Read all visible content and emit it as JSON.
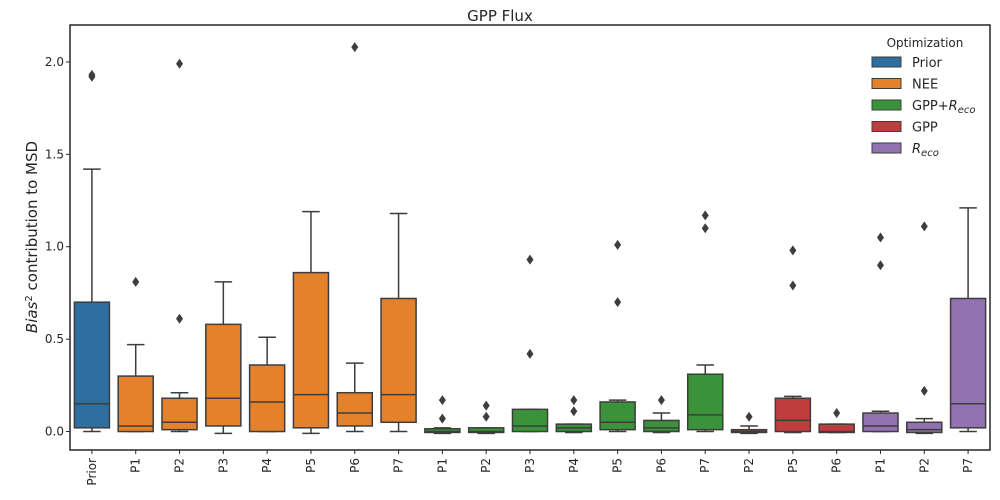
{
  "chart_data": {
    "type": "box",
    "title": "GPP Flux",
    "ylabel": "Bias² contribution to MSD",
    "ylabel_parts": {
      "main": "Bias",
      "sup": "2",
      "rest": " contribution to MSD"
    },
    "ylim": [
      -0.1,
      2.2
    ],
    "yticks": [
      0.0,
      0.5,
      1.0,
      1.5,
      2.0
    ],
    "ytick_labels": [
      "0.0",
      "0.5",
      "1.0",
      "1.5",
      "2.0"
    ],
    "grid": false,
    "legend": {
      "title": "Optimization",
      "placement": "top-right",
      "entries": [
        {
          "group": "Prior",
          "color": "#2f6f9f",
          "text": "Prior"
        },
        {
          "group": "NEE",
          "color": "#e6812b",
          "text": "NEE"
        },
        {
          "group": "GPP+Reco",
          "color": "#3a923a",
          "text": "GPP+",
          "italic": "R",
          "sub": "eco"
        },
        {
          "group": "GPP",
          "color": "#c03d3e",
          "text": "GPP"
        },
        {
          "group": "Reco",
          "color": "#9372b2",
          "italic": "R",
          "sub": "eco"
        }
      ]
    },
    "series": [
      {
        "name": "Prior",
        "group": "Prior",
        "color": "#2f6f9f",
        "boxes": [
          {
            "label": "Prior",
            "whislo": 0.0,
            "q1": 0.02,
            "med": 0.15,
            "q3": 0.7,
            "whishi": 1.42,
            "fliers": [
              1.92,
              1.93
            ]
          }
        ]
      },
      {
        "name": "NEE",
        "group": "NEE",
        "color": "#e6812b",
        "boxes": [
          {
            "label": "P1",
            "whislo": 0.0,
            "q1": 0.0,
            "med": 0.03,
            "q3": 0.3,
            "whishi": 0.47,
            "fliers": [
              0.81
            ]
          },
          {
            "label": "P2",
            "whislo": 0.0,
            "q1": 0.01,
            "med": 0.05,
            "q3": 0.18,
            "whishi": 0.21,
            "fliers": [
              0.61,
              1.99
            ]
          },
          {
            "label": "P3",
            "whislo": -0.01,
            "q1": 0.03,
            "med": 0.18,
            "q3": 0.58,
            "whishi": 0.81,
            "fliers": []
          },
          {
            "label": "P4",
            "whislo": 0.0,
            "q1": 0.0,
            "med": 0.16,
            "q3": 0.36,
            "whishi": 0.51,
            "fliers": []
          },
          {
            "label": "P5",
            "whislo": -0.01,
            "q1": 0.02,
            "med": 0.2,
            "q3": 0.86,
            "whishi": 1.19,
            "fliers": []
          },
          {
            "label": "P6",
            "whislo": 0.0,
            "q1": 0.03,
            "med": 0.1,
            "q3": 0.21,
            "whishi": 0.37,
            "fliers": [
              2.08
            ]
          },
          {
            "label": "P7",
            "whislo": 0.0,
            "q1": 0.05,
            "med": 0.2,
            "q3": 0.72,
            "whishi": 1.18,
            "fliers": []
          }
        ]
      },
      {
        "name": "GPP+Reco",
        "group": "GPP+Reco",
        "color": "#3a923a",
        "boxes": [
          {
            "label": "P1",
            "whislo": -0.01,
            "q1": -0.005,
            "med": 0.0,
            "q3": 0.015,
            "whishi": 0.02,
            "fliers": [
              0.07,
              0.17
            ]
          },
          {
            "label": "P2",
            "whislo": -0.01,
            "q1": -0.005,
            "med": 0.0,
            "q3": 0.02,
            "whishi": 0.02,
            "fliers": [
              0.08,
              0.14
            ]
          },
          {
            "label": "P3",
            "whislo": 0.0,
            "q1": 0.0,
            "med": 0.03,
            "q3": 0.12,
            "whishi": 0.12,
            "fliers": [
              0.42,
              0.93
            ]
          },
          {
            "label": "P4",
            "whislo": -0.005,
            "q1": 0.0,
            "med": 0.02,
            "q3": 0.04,
            "whishi": 0.04,
            "fliers": [
              0.11,
              0.17
            ]
          },
          {
            "label": "P5",
            "whislo": 0.0,
            "q1": 0.01,
            "med": 0.05,
            "q3": 0.16,
            "whishi": 0.17,
            "fliers": [
              0.7,
              1.01
            ]
          },
          {
            "label": "P6",
            "whislo": -0.005,
            "q1": 0.0,
            "med": 0.02,
            "q3": 0.06,
            "whishi": 0.1,
            "fliers": [
              0.17
            ]
          },
          {
            "label": "P7",
            "whislo": 0.0,
            "q1": 0.01,
            "med": 0.09,
            "q3": 0.31,
            "whishi": 0.36,
            "fliers": [
              1.1,
              1.17
            ]
          }
        ]
      },
      {
        "name": "GPP",
        "group": "GPP",
        "color": "#c03d3e",
        "boxes": [
          {
            "label": "P2",
            "whislo": -0.01,
            "q1": -0.005,
            "med": 0.0,
            "q3": 0.01,
            "whishi": 0.03,
            "fliers": [
              0.08
            ]
          },
          {
            "label": "P5",
            "whislo": -0.005,
            "q1": 0.0,
            "med": 0.06,
            "q3": 0.18,
            "whishi": 0.19,
            "fliers": [
              0.79,
              0.98
            ]
          },
          {
            "label": "P6",
            "whislo": -0.005,
            "q1": -0.005,
            "med": 0.0,
            "q3": 0.04,
            "whishi": 0.04,
            "fliers": [
              0.1
            ]
          }
        ]
      },
      {
        "name": "Reco",
        "group": "Reco",
        "color": "#9372b2",
        "boxes": [
          {
            "label": "P1",
            "whislo": 0.0,
            "q1": 0.0,
            "med": 0.03,
            "q3": 0.1,
            "whishi": 0.11,
            "fliers": [
              0.9,
              1.05
            ]
          },
          {
            "label": "P2",
            "whislo": -0.01,
            "q1": -0.005,
            "med": 0.01,
            "q3": 0.05,
            "whishi": 0.07,
            "fliers": [
              0.22,
              1.11
            ]
          },
          {
            "label": "P7",
            "whislo": 0.0,
            "q1": 0.02,
            "med": 0.15,
            "q3": 0.72,
            "whishi": 1.21,
            "fliers": []
          }
        ]
      }
    ]
  }
}
